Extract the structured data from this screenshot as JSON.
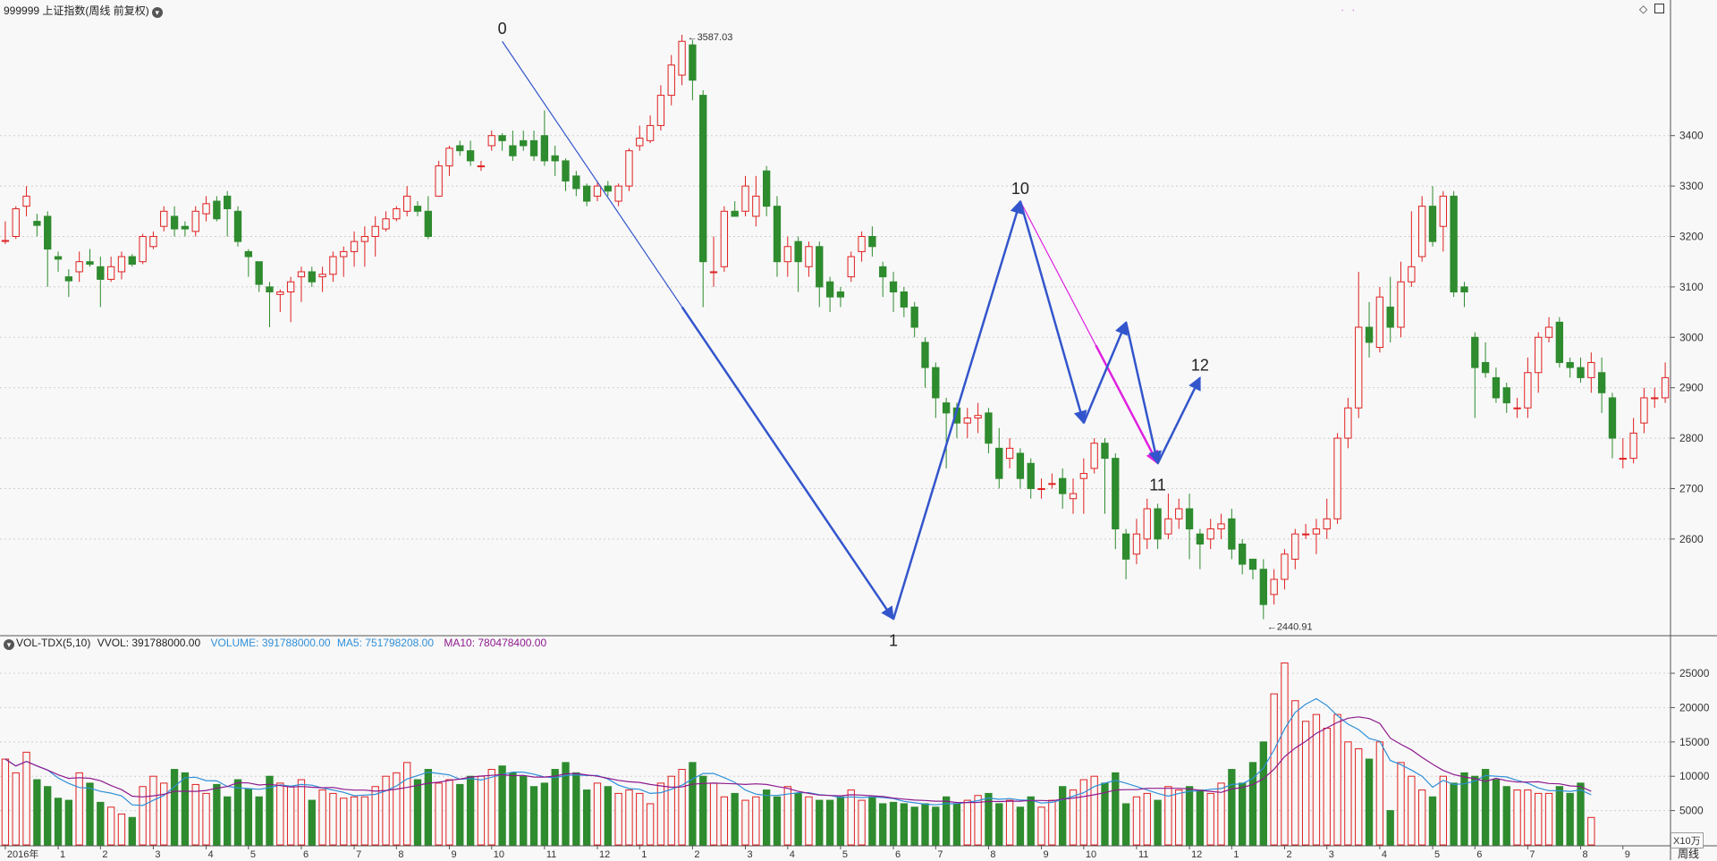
{
  "header": {
    "title": "999999 上证指数(周线 前复权)",
    "right_icons": [
      "diamond-icon",
      "window-icon"
    ]
  },
  "volume_header": {
    "indicator": "VOL-TDX(5,10)",
    "vvol": "VVOL: 391788000.00",
    "volume": "VOLUME: 391788000.00",
    "ma5": "MA5: 751798208.00",
    "ma10": "MA10: 780478400.00"
  },
  "colors": {
    "up": "#e02020",
    "down": "#2e8b2e",
    "wave_blue": "#3355cc",
    "wave_magenta": "#e020e0",
    "ma5": "#2f8fd8",
    "ma10": "#8e1a8e",
    "background": "#f8f8f8"
  },
  "footer": {
    "period_button": "周线",
    "unit": "X10万",
    "x_labels": [
      "2016年",
      "1",
      "2",
      "3",
      "4",
      "5",
      "6",
      "7",
      "8",
      "9",
      "10",
      "11",
      "12",
      "1",
      "2",
      "3",
      "4",
      "5",
      "6",
      "7",
      "8",
      "9",
      "10",
      "11",
      "12",
      "1",
      "2",
      "3",
      "4",
      "5",
      "6",
      "7",
      "8",
      "9"
    ]
  },
  "chart_data": [
    {
      "type": "candlestick",
      "title": "999999 上证指数(周线 前复权)",
      "period": "weekly",
      "y_ticks": [
        2600,
        2700,
        2800,
        2900,
        3000,
        3100,
        3200,
        3300,
        3400
      ],
      "ylim": [
        2410,
        3630
      ],
      "grid": true,
      "annotations": {
        "high": "3587.03",
        "low": "2440.91"
      },
      "wave_points": [
        {
          "label": "0",
          "index": 47,
          "price": 3587
        },
        {
          "label": "1",
          "index": 84,
          "price": 2441
        },
        {
          "label": "10",
          "index": 96,
          "price": 3270
        },
        {
          "label": "11",
          "index": 109,
          "price": 2750
        },
        {
          "label": "12",
          "index": 113,
          "price": 2920
        }
      ],
      "candles": [
        [
          3192,
          3192,
          3230,
          3185
        ],
        [
          3200,
          3255,
          3260,
          3195
        ],
        [
          3260,
          3280,
          3300,
          3240
        ],
        [
          3230,
          3222,
          3245,
          3200
        ],
        [
          3240,
          3175,
          3250,
          3100
        ],
        [
          3160,
          3155,
          3170,
          3130
        ],
        [
          3120,
          3112,
          3135,
          3080
        ],
        [
          3130,
          3150,
          3170,
          3110
        ],
        [
          3150,
          3145,
          3175,
          3140
        ],
        [
          3140,
          3115,
          3160,
          3060
        ],
        [
          3115,
          3140,
          3160,
          3110
        ],
        [
          3130,
          3160,
          3170,
          3115
        ],
        [
          3160,
          3145,
          3165,
          3140
        ],
        [
          3150,
          3200,
          3205,
          3145
        ],
        [
          3180,
          3200,
          3210,
          3175
        ],
        [
          3220,
          3250,
          3260,
          3210
        ],
        [
          3240,
          3215,
          3260,
          3200
        ],
        [
          3220,
          3215,
          3230,
          3200
        ],
        [
          3210,
          3250,
          3260,
          3200
        ],
        [
          3245,
          3265,
          3280,
          3230
        ],
        [
          3270,
          3235,
          3280,
          3230
        ],
        [
          3280,
          3255,
          3290,
          3200
        ],
        [
          3250,
          3190,
          3260,
          3180
        ],
        [
          3170,
          3160,
          3175,
          3120
        ],
        [
          3150,
          3105,
          3150,
          3090
        ],
        [
          3100,
          3090,
          3110,
          3020
        ],
        [
          3085,
          3090,
          3095,
          3050
        ],
        [
          3090,
          3110,
          3120,
          3030
        ],
        [
          3120,
          3130,
          3140,
          3070
        ],
        [
          3130,
          3110,
          3140,
          3100
        ],
        [
          3120,
          3125,
          3140,
          3090
        ],
        [
          3125,
          3160,
          3170,
          3110
        ],
        [
          3160,
          3170,
          3180,
          3120
        ],
        [
          3170,
          3190,
          3210,
          3140
        ],
        [
          3190,
          3200,
          3220,
          3140
        ],
        [
          3200,
          3220,
          3240,
          3160
        ],
        [
          3215,
          3235,
          3250,
          3210
        ],
        [
          3235,
          3255,
          3260,
          3230
        ],
        [
          3250,
          3280,
          3300,
          3240
        ],
        [
          3260,
          3250,
          3270,
          3240
        ],
        [
          3250,
          3200,
          3280,
          3195
        ],
        [
          3280,
          3340,
          3350,
          3280
        ],
        [
          3340,
          3375,
          3380,
          3320
        ],
        [
          3380,
          3370,
          3390,
          3360
        ],
        [
          3370,
          3350,
          3390,
          3340
        ],
        [
          3340,
          3340,
          3350,
          3330
        ],
        [
          3380,
          3400,
          3410,
          3370
        ],
        [
          3400,
          3390,
          3405,
          3370
        ],
        [
          3380,
          3360,
          3410,
          3350
        ],
        [
          3390,
          3380,
          3410,
          3370
        ],
        [
          3390,
          3360,
          3410,
          3350
        ],
        [
          3400,
          3350,
          3450,
          3340
        ],
        [
          3360,
          3350,
          3380,
          3320
        ],
        [
          3350,
          3310,
          3355,
          3290
        ],
        [
          3320,
          3295,
          3330,
          3280
        ],
        [
          3300,
          3270,
          3305,
          3260
        ],
        [
          3280,
          3300,
          3310,
          3270
        ],
        [
          3300,
          3290,
          3310,
          3280
        ],
        [
          3270,
          3300,
          3305,
          3260
        ],
        [
          3300,
          3370,
          3375,
          3290
        ],
        [
          3380,
          3395,
          3420,
          3370
        ],
        [
          3390,
          3420,
          3440,
          3385
        ],
        [
          3420,
          3480,
          3500,
          3410
        ],
        [
          3480,
          3540,
          3560,
          3460
        ],
        [
          3520,
          3587,
          3600,
          3500
        ],
        [
          3580,
          3510,
          3590,
          3470
        ],
        [
          3480,
          3150,
          3490,
          3060
        ],
        [
          3130,
          3130,
          3200,
          3100
        ],
        [
          3140,
          3250,
          3260,
          3130
        ],
        [
          3250,
          3240,
          3270,
          3240
        ],
        [
          3250,
          3300,
          3320,
          3240
        ],
        [
          3240,
          3280,
          3320,
          3220
        ],
        [
          3330,
          3260,
          3340,
          3240
        ],
        [
          3260,
          3150,
          3280,
          3120
        ],
        [
          3150,
          3180,
          3200,
          3120
        ],
        [
          3190,
          3150,
          3200,
          3090
        ],
        [
          3140,
          3180,
          3190,
          3120
        ],
        [
          3180,
          3100,
          3190,
          3060
        ],
        [
          3110,
          3080,
          3120,
          3050
        ],
        [
          3090,
          3080,
          3100,
          3060
        ],
        [
          3120,
          3160,
          3170,
          3110
        ],
        [
          3170,
          3200,
          3210,
          3150
        ],
        [
          3200,
          3180,
          3220,
          3160
        ],
        [
          3140,
          3120,
          3150,
          3080
        ],
        [
          3110,
          3090,
          3130,
          3050
        ],
        [
          3090,
          3060,
          3100,
          3040
        ],
        [
          3060,
          3020,
          3070,
          3000
        ],
        [
          2990,
          2940,
          3000,
          2900
        ],
        [
          2940,
          2880,
          2950,
          2840
        ],
        [
          2870,
          2850,
          2880,
          2740
        ],
        [
          2860,
          2830,
          2870,
          2800
        ],
        [
          2830,
          2840,
          2860,
          2800
        ],
        [
          2840,
          2845,
          2870,
          2810
        ],
        [
          2850,
          2790,
          2860,
          2770
        ],
        [
          2780,
          2720,
          2820,
          2700
        ],
        [
          2760,
          2780,
          2800,
          2740
        ],
        [
          2770,
          2720,
          2780,
          2700
        ],
        [
          2750,
          2700,
          2760,
          2680
        ],
        [
          2700,
          2700,
          2720,
          2680
        ],
        [
          2710,
          2710,
          2730,
          2700
        ],
        [
          2720,
          2690,
          2740,
          2660
        ],
        [
          2680,
          2690,
          2720,
          2650
        ],
        [
          2720,
          2730,
          2760,
          2650
        ],
        [
          2740,
          2790,
          2800,
          2730
        ],
        [
          2790,
          2760,
          2800,
          2650
        ],
        [
          2760,
          2620,
          2770,
          2580
        ],
        [
          2610,
          2560,
          2620,
          2520
        ],
        [
          2570,
          2610,
          2640,
          2550
        ],
        [
          2600,
          2660,
          2680,
          2580
        ],
        [
          2660,
          2600,
          2670,
          2580
        ],
        [
          2610,
          2640,
          2690,
          2600
        ],
        [
          2640,
          2660,
          2680,
          2620
        ],
        [
          2660,
          2620,
          2690,
          2560
        ],
        [
          2610,
          2590,
          2620,
          2540
        ],
        [
          2600,
          2620,
          2640,
          2580
        ],
        [
          2620,
          2630,
          2650,
          2600
        ],
        [
          2640,
          2580,
          2660,
          2560
        ],
        [
          2590,
          2550,
          2600,
          2530
        ],
        [
          2560,
          2540,
          2560,
          2520
        ],
        [
          2540,
          2470,
          2560,
          2441
        ],
        [
          2490,
          2520,
          2540,
          2470
        ],
        [
          2520,
          2570,
          2580,
          2500
        ],
        [
          2560,
          2610,
          2620,
          2540
        ],
        [
          2610,
          2610,
          2630,
          2600
        ],
        [
          2610,
          2620,
          2640,
          2570
        ],
        [
          2620,
          2640,
          2680,
          2600
        ],
        [
          2640,
          2800,
          2810,
          2630
        ],
        [
          2800,
          2860,
          2880,
          2780
        ],
        [
          2860,
          3020,
          3130,
          2840
        ],
        [
          3020,
          2990,
          3070,
          2960
        ],
        [
          2980,
          3080,
          3100,
          2970
        ],
        [
          3060,
          3020,
          3120,
          2990
        ],
        [
          3020,
          3110,
          3150,
          3000
        ],
        [
          3110,
          3140,
          3250,
          3100
        ],
        [
          3160,
          3260,
          3280,
          3150
        ],
        [
          3260,
          3190,
          3300,
          3180
        ],
        [
          3220,
          3280,
          3290,
          3170
        ],
        [
          3280,
          3090,
          3290,
          3080
        ],
        [
          3100,
          3090,
          3110,
          3060
        ],
        [
          3000,
          2940,
          3010,
          2840
        ],
        [
          2950,
          2930,
          2990,
          2920
        ],
        [
          2920,
          2880,
          2940,
          2870
        ],
        [
          2900,
          2870,
          2910,
          2850
        ],
        [
          2860,
          2860,
          2880,
          2840
        ],
        [
          2860,
          2930,
          2960,
          2840
        ],
        [
          2930,
          3000,
          3010,
          2890
        ],
        [
          3000,
          3020,
          3040,
          2990
        ],
        [
          3030,
          2950,
          3040,
          2940
        ],
        [
          2950,
          2940,
          2960,
          2920
        ],
        [
          2940,
          2920,
          2960,
          2910
        ],
        [
          2920,
          2950,
          2970,
          2890
        ],
        [
          2930,
          2890,
          2960,
          2850
        ],
        [
          2880,
          2800,
          2890,
          2760
        ],
        [
          2760,
          2760,
          2800,
          2740
        ],
        [
          2760,
          2810,
          2840,
          2750
        ],
        [
          2830,
          2880,
          2900,
          2810
        ],
        [
          2880,
          2880,
          2900,
          2860
        ],
        [
          2880,
          2920,
          2950,
          2870
        ]
      ]
    },
    {
      "type": "bar",
      "title": "VOL-TDX(5,10)",
      "unit": "X10万",
      "y_ticks": [
        5000,
        10000,
        15000,
        20000,
        25000
      ],
      "ylim": [
        0,
        28000
      ],
      "series": [
        {
          "name": "VOLUME",
          "values": [
            12500,
            10500,
            13500,
            9500,
            8500,
            6800,
            6500,
            10500,
            9000,
            6200,
            5500,
            4500,
            4000,
            8500,
            10000,
            9000,
            11000,
            10500,
            8800,
            7500,
            8800,
            7000,
            9500,
            8200,
            7000,
            10000,
            9000,
            8500,
            9500,
            6500,
            8000,
            7500,
            6800,
            7000,
            7000,
            8500,
            10000,
            10500,
            12000,
            9500,
            11000,
            9000,
            9500,
            8800,
            10000,
            10000,
            11000,
            11500,
            10500,
            10000,
            8500,
            9000,
            11000,
            12000,
            10500,
            8000,
            9000,
            8500,
            7500,
            8000,
            7500,
            6000,
            9000,
            10000,
            11000,
            12000,
            10000,
            9000,
            7000,
            7500,
            6500,
            7000,
            8000,
            7000,
            8500,
            7500,
            7000,
            6500,
            6500,
            7000,
            8000,
            6500,
            7000,
            6000,
            6200,
            6000,
            5500,
            6000,
            5500,
            7000,
            6000,
            6500,
            7200,
            7500,
            6000,
            6500,
            5500,
            7000,
            5500,
            6500,
            8500,
            8000,
            9500,
            10000,
            9000,
            10500,
            6000,
            7000,
            7500,
            6500,
            8500,
            8000,
            8500,
            8000,
            7500,
            9000,
            11000,
            9000,
            12000,
            15000,
            22000,
            26500,
            21000,
            18000,
            19000,
            17000,
            19000,
            15000,
            14000,
            12500,
            15000,
            5000,
            12000,
            10000,
            8000,
            7000,
            10000,
            9000,
            10500,
            10000,
            11000,
            9500,
            8500,
            8000,
            8000,
            7500,
            7500,
            8500,
            7500,
            9000,
            4000
          ]
        },
        {
          "name": "MA5"
        },
        {
          "name": "MA10"
        }
      ]
    }
  ]
}
